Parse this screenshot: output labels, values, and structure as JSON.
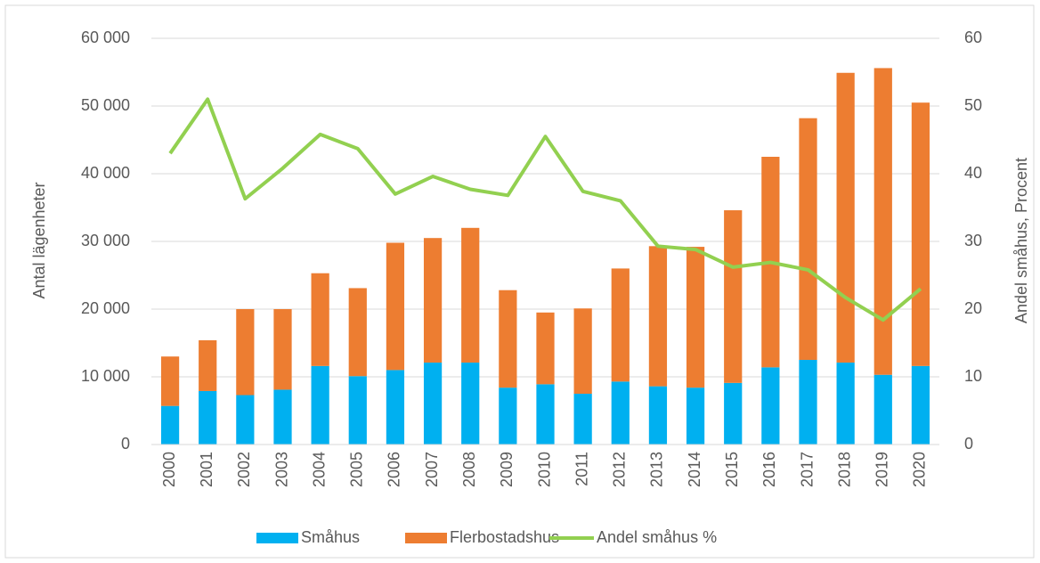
{
  "chart_data": {
    "type": "bar",
    "stacked": true,
    "categories": [
      "2000",
      "2001",
      "2002",
      "2003",
      "2004",
      "2005",
      "2006",
      "2007",
      "2008",
      "2009",
      "2010",
      "2011",
      "2012",
      "2013",
      "2014",
      "2015",
      "2016",
      "2017",
      "2018",
      "2019",
      "2020"
    ],
    "series": [
      {
        "name": "Småhus",
        "color": "#00b0f0",
        "values": [
          5700,
          7900,
          7300,
          8100,
          11600,
          10100,
          11000,
          12100,
          12100,
          8400,
          8900,
          7500,
          9300,
          8600,
          8400,
          9100,
          11400,
          12500,
          12100,
          10300,
          11600
        ]
      },
      {
        "name": "Flerbostadshus",
        "color": "#ed7d31",
        "values": [
          7300,
          7500,
          12700,
          11900,
          13700,
          13000,
          18800,
          18400,
          19900,
          14400,
          10600,
          12600,
          16700,
          20700,
          20800,
          25500,
          31100,
          35700,
          42800,
          45300,
          38900
        ]
      },
      {
        "name": "Andel småhus %",
        "color": "#92d050",
        "type": "line",
        "axis": "y2",
        "values": [
          43,
          51,
          36.3,
          40.8,
          45.8,
          43.7,
          37,
          39.6,
          37.7,
          36.8,
          45.5,
          37.4,
          36,
          29.3,
          28.8,
          26.2,
          26.9,
          25.8,
          21.7,
          18.4,
          23
        ]
      }
    ],
    "y_label": "Antal lägenheter",
    "y2_label": "Andel småhus, Procent",
    "ylim": [
      0,
      60000
    ],
    "yticks": [
      0,
      {
        "value": 10000,
        "label": "10 000"
      },
      {
        "value": 20000,
        "label": "20 000"
      },
      {
        "value": 30000,
        "label": "30 000"
      },
      {
        "value": 40000,
        "label": "40 000"
      },
      {
        "value": 50000,
        "label": "50 000"
      },
      {
        "value": 60000,
        "label": "60 000"
      }
    ],
    "y2lim": [
      0,
      60
    ],
    "y2ticks": [
      0,
      10,
      20,
      30,
      40,
      50,
      60
    ],
    "grid": true,
    "legend": "bottom"
  }
}
